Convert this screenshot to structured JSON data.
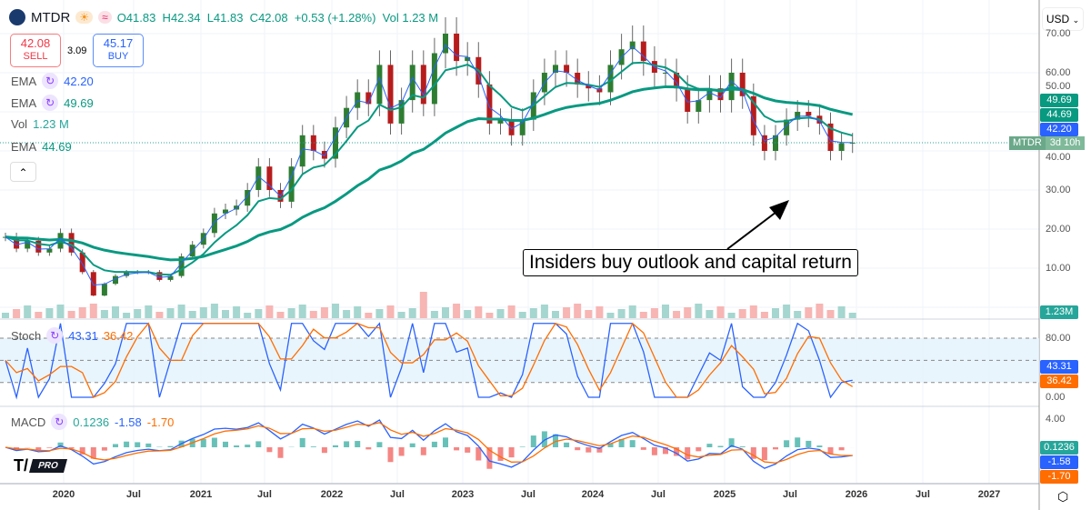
{
  "header": {
    "symbol": "MTDR",
    "ohlc": "O41.83  H42.34  L41.83  C42.08  +0.53 (+1.28%)  Vol 1.23 M",
    "sell_price": "42.08",
    "sell_label": "SELL",
    "spread": "3.09",
    "buy_price": "45.17",
    "buy_label": "BUY"
  },
  "indicators": {
    "ema1_label": "EMA",
    "ema1_value": "42.20",
    "ema2_label": "EMA",
    "ema2_value": "49.69",
    "vol_label": "Vol",
    "vol_value": "1.23 M",
    "ema3_label": "EMA",
    "ema3_value": "44.69",
    "stoch_label": "Stoch",
    "stoch_k": "43.31",
    "stoch_d": "36.42",
    "macd_label": "MACD",
    "macd_hist": "0.1236",
    "macd_line": "-1.58",
    "macd_signal": "-1.70"
  },
  "currency": "USD",
  "countdown_symbol": "MTDR",
  "countdown": "3d 10h",
  "logo_text": "PRO",
  "annotation": "Insiders buy outlook and capital return",
  "price_axis": [
    "70.00",
    "60.00",
    "50.00",
    "40.00",
    "30.00",
    "20.00",
    "10.00"
  ],
  "stoch_axis": [
    "80.00",
    "0.00"
  ],
  "macd_axis": [
    "4.00"
  ],
  "tags": {
    "ema2": "49.69",
    "ema3": "44.69",
    "ema1": "42.20",
    "vol": "1.23M",
    "stoch_k": "43.31",
    "stoch_d": "36.42",
    "macd_hist": "0.1236",
    "macd_line": "-1.58",
    "macd_signal": "-1.70"
  },
  "colors": {
    "up": "#26a69a",
    "down": "#ef5350",
    "candle_up": "#2e7d32",
    "candle_down": "#b71c1c",
    "ema_fast": "#2962ff",
    "ema_green": "#089981",
    "stoch_k": "#2962ff",
    "stoch_d": "#ff6d00"
  },
  "chart_data": {
    "type": "candlestick",
    "title": "MTDR",
    "ylim": [
      0,
      75
    ],
    "time_ticks": [
      "2020",
      "Jul",
      "2021",
      "Jul",
      "2022",
      "Jul",
      "2023",
      "Jul",
      "2024",
      "Jul",
      "2025",
      "Jul",
      "2026",
      "Jul",
      "2027"
    ],
    "start": "2019-07",
    "interval": "month",
    "close": [
      18,
      15,
      17,
      14,
      15,
      19,
      14,
      9,
      3,
      6,
      8,
      9,
      9,
      9,
      7,
      8,
      13,
      16,
      19,
      24,
      25,
      26,
      30,
      36,
      30,
      27,
      36,
      44,
      40,
      38,
      46,
      51,
      55,
      52,
      62,
      47,
      53,
      62,
      52,
      65,
      70,
      63,
      64,
      57,
      47,
      48,
      44,
      48,
      55,
      60,
      62,
      60,
      57,
      56,
      55,
      62,
      66,
      68,
      63,
      60,
      60,
      56,
      50,
      53,
      56,
      53,
      60,
      54,
      44,
      40,
      44,
      48,
      50,
      49,
      47,
      40,
      42,
      42.08
    ]
  }
}
